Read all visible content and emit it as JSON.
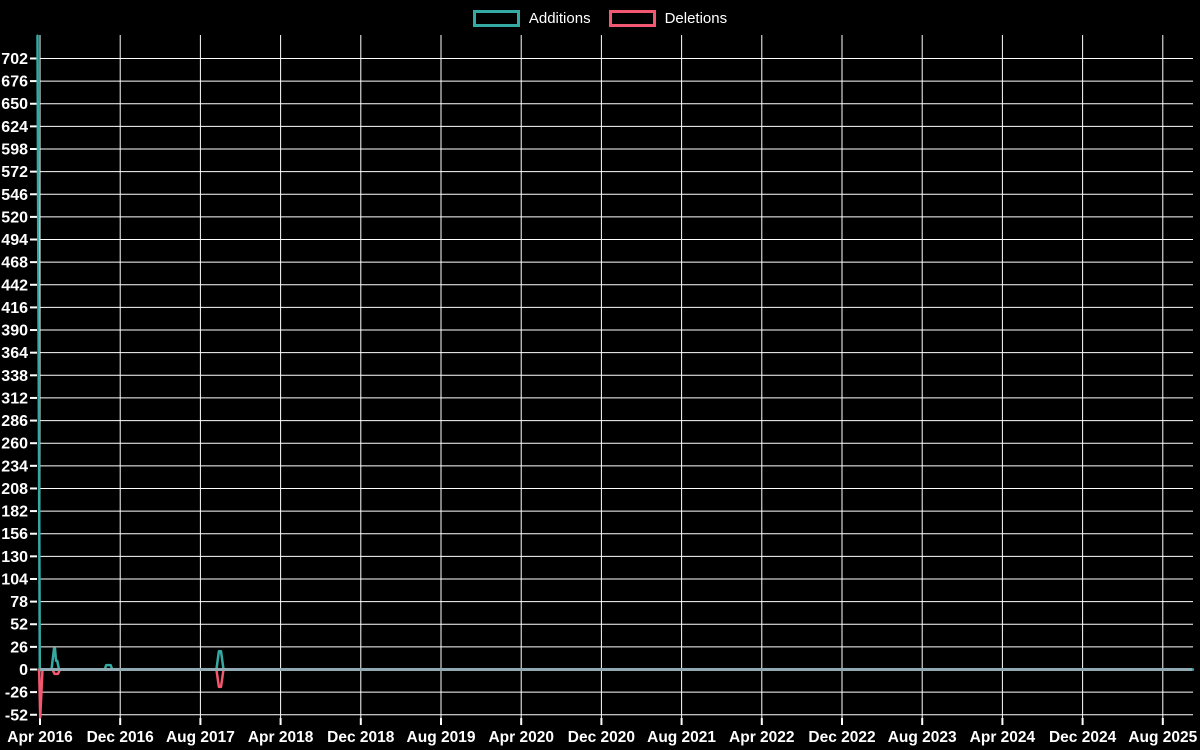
{
  "page": {
    "background": "#000000",
    "text_color": "#ffffff",
    "gridline_color": "#ffffff"
  },
  "legend": {
    "items": [
      {
        "label": "Additions",
        "color": "#35aaa3"
      },
      {
        "label": "Deletions",
        "color": "#f25870"
      }
    ]
  },
  "chart_data": {
    "type": "line",
    "title": "",
    "xlabel": "",
    "ylabel": "",
    "grid": {
      "show": true,
      "color": "#ffffff"
    },
    "zero_line_color": "#8faab2",
    "legend_position": "top-center",
    "x_axis": {
      "unit": "months since Apr 2016",
      "tick_labels": [
        "Apr 2016",
        "Dec 2016",
        "Aug 2017",
        "Apr 2018",
        "Dec 2018",
        "Aug 2019",
        "Apr 2020",
        "Dec 2020",
        "Aug 2021",
        "Apr 2022",
        "Dec 2022",
        "Aug 2023",
        "Apr 2024",
        "Dec 2024",
        "Aug 2025"
      ],
      "tick_month_offsets": [
        0,
        8,
        16,
        24,
        32,
        40,
        48,
        56,
        64,
        72,
        80,
        88,
        96,
        104,
        112
      ]
    },
    "y_axis": {
      "tick_values": [
        702,
        676,
        650,
        624,
        598,
        572,
        546,
        520,
        494,
        468,
        442,
        416,
        390,
        364,
        338,
        312,
        286,
        260,
        234,
        208,
        182,
        156,
        130,
        104,
        78,
        52,
        26,
        0,
        -26,
        -52
      ],
      "min": -56,
      "max": 729
    },
    "series": [
      {
        "name": "Additions",
        "color": "#35aaa3",
        "points": [
          {
            "m": -0.25,
            "v": 728
          },
          {
            "m": -0.02,
            "v": 0
          },
          {
            "m": 1.15,
            "v": 0
          },
          {
            "m": 1.4,
            "v": 24
          },
          {
            "m": 1.5,
            "v": 24
          },
          {
            "m": 1.6,
            "v": 10
          },
          {
            "m": 1.72,
            "v": 10
          },
          {
            "m": 1.9,
            "v": 0
          },
          {
            "m": 6.45,
            "v": 0
          },
          {
            "m": 6.6,
            "v": 5
          },
          {
            "m": 7.05,
            "v": 5
          },
          {
            "m": 7.2,
            "v": 0
          },
          {
            "m": 17.6,
            "v": 0
          },
          {
            "m": 17.85,
            "v": 21
          },
          {
            "m": 18.05,
            "v": 21
          },
          {
            "m": 18.3,
            "v": 0
          },
          {
            "m": 115.0,
            "v": 0
          }
        ]
      },
      {
        "name": "Deletions",
        "color": "#f25870",
        "points": [
          {
            "m": -0.15,
            "v": 0
          },
          {
            "m": -0.08,
            "v": -3
          },
          {
            "m": 0.02,
            "v": -55
          },
          {
            "m": 0.25,
            "v": 0
          },
          {
            "m": 1.25,
            "v": 0
          },
          {
            "m": 1.45,
            "v": -5
          },
          {
            "m": 1.8,
            "v": -5
          },
          {
            "m": 2.0,
            "v": 0
          },
          {
            "m": 17.6,
            "v": 0
          },
          {
            "m": 17.85,
            "v": -20
          },
          {
            "m": 18.05,
            "v": -20
          },
          {
            "m": 18.3,
            "v": 0
          },
          {
            "m": 115.0,
            "v": 0
          }
        ]
      }
    ]
  }
}
